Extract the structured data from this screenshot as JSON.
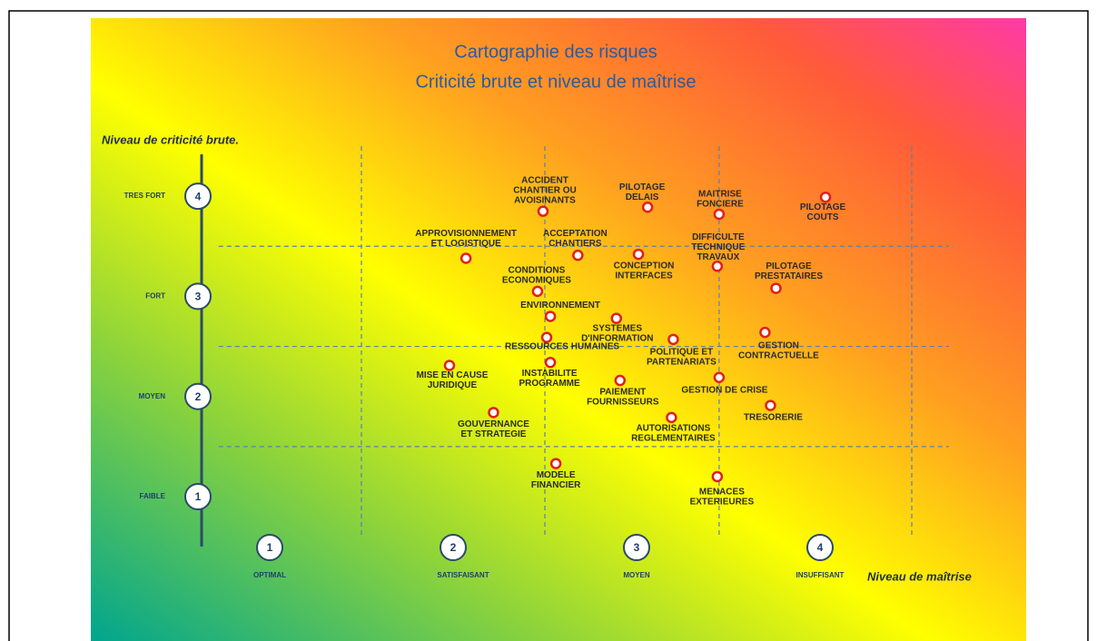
{
  "chart_data": {
    "type": "scatter",
    "title": "Cartographie des risques",
    "subtitle": "Criticité brute et niveau de maîtrise",
    "y_label": "Niveau de criticité brute.",
    "x_label": "Niveau de maîtrise",
    "xlim": [
      0.4,
      4.95
    ],
    "ylim": [
      0.5,
      4.5
    ],
    "xticks": [
      1,
      2,
      3,
      4
    ],
    "yticks": [
      1,
      2,
      3,
      4
    ],
    "xlevels": [
      "OPTIMAL",
      "SATISFAISANT",
      "MOYEN",
      "INSUFFISANT"
    ],
    "ylevels": [
      "FAIBLE",
      "MOYEN",
      "FORT",
      "TRES FORT"
    ],
    "xgrid": [
      1.5,
      2.5,
      3.45,
      4.5
    ],
    "ygrid": [
      1.5,
      2.5,
      3.5
    ],
    "color": "#e0201a",
    "points": [
      {
        "label": [
          "ACCIDENT",
          "CHANTIER OU",
          "AVOISINANTS"
        ],
        "x": 2.49,
        "y": 3.85
      },
      {
        "label": [
          "PILOTAGE",
          "DELAIS"
        ],
        "x": 3.06,
        "y": 3.89
      },
      {
        "label": [
          "MAITRISE",
          "FONCIERE"
        ],
        "x": 3.45,
        "y": 3.82
      },
      {
        "label": [
          "PILOTAGE",
          "COUTS"
        ],
        "x": 4.03,
        "y": 3.99
      },
      {
        "label": [
          "APPROVISIONNEMENT",
          "ET LOGISTIQUE"
        ],
        "x": 2.07,
        "y": 3.38
      },
      {
        "label": [
          "ACCEPTATION",
          "CHANTIERS"
        ],
        "x": 2.68,
        "y": 3.41
      },
      {
        "label": [
          "CONCEPTION",
          "INTERFACES"
        ],
        "x": 3.01,
        "y": 3.42
      },
      {
        "label": [
          "DIFFICULTE",
          "TECHNIQUE",
          "TRAVAUX"
        ],
        "x": 3.44,
        "y": 3.3
      },
      {
        "label": [
          "CONDITIONS",
          "ECONOMIQUES"
        ],
        "x": 2.46,
        "y": 3.05
      },
      {
        "label": [
          "PILOTAGE",
          "PRESTATAIRES"
        ],
        "x": 3.76,
        "y": 3.08
      },
      {
        "label": [
          "ENVIRONNEMENT"
        ],
        "x": 2.53,
        "y": 2.8
      },
      {
        "label": [
          "SYSTEMES",
          "D'INFORMATION"
        ],
        "x": 2.89,
        "y": 2.78
      },
      {
        "label": [
          "RESSOURCES HUMAINES"
        ],
        "x": 2.51,
        "y": 2.59
      },
      {
        "label": [
          "POLITIQUE ET",
          "PARTENARIATS"
        ],
        "x": 3.2,
        "y": 2.57
      },
      {
        "label": [
          "GESTION",
          "CONTRACTUELLE"
        ],
        "x": 3.7,
        "y": 2.64
      },
      {
        "label": [
          "MISE EN CAUSE",
          "JURIDIQUE"
        ],
        "x": 1.98,
        "y": 2.31
      },
      {
        "label": [
          "INSTABILITE",
          "PROGRAMME"
        ],
        "x": 2.53,
        "y": 2.34
      },
      {
        "label": [
          "PAIEMENT",
          "FOURNISSEURS"
        ],
        "x": 2.91,
        "y": 2.16
      },
      {
        "label": [
          "GESTION DE CRISE"
        ],
        "x": 3.45,
        "y": 2.19
      },
      {
        "label": [
          "TRESORERIE"
        ],
        "x": 3.73,
        "y": 1.91
      },
      {
        "label": [
          "GOUVERNANCE",
          "ET STRATEGIE"
        ],
        "x": 2.22,
        "y": 1.84
      },
      {
        "label": [
          "AUTORISATIONS",
          "REGLEMENTAIRES"
        ],
        "x": 3.19,
        "y": 1.79
      },
      {
        "label": [
          "MODELE",
          "FINANCIER"
        ],
        "x": 2.56,
        "y": 1.33
      },
      {
        "label": [
          "MENACES",
          "EXTERIEURES"
        ],
        "x": 3.44,
        "y": 1.2
      }
    ]
  }
}
